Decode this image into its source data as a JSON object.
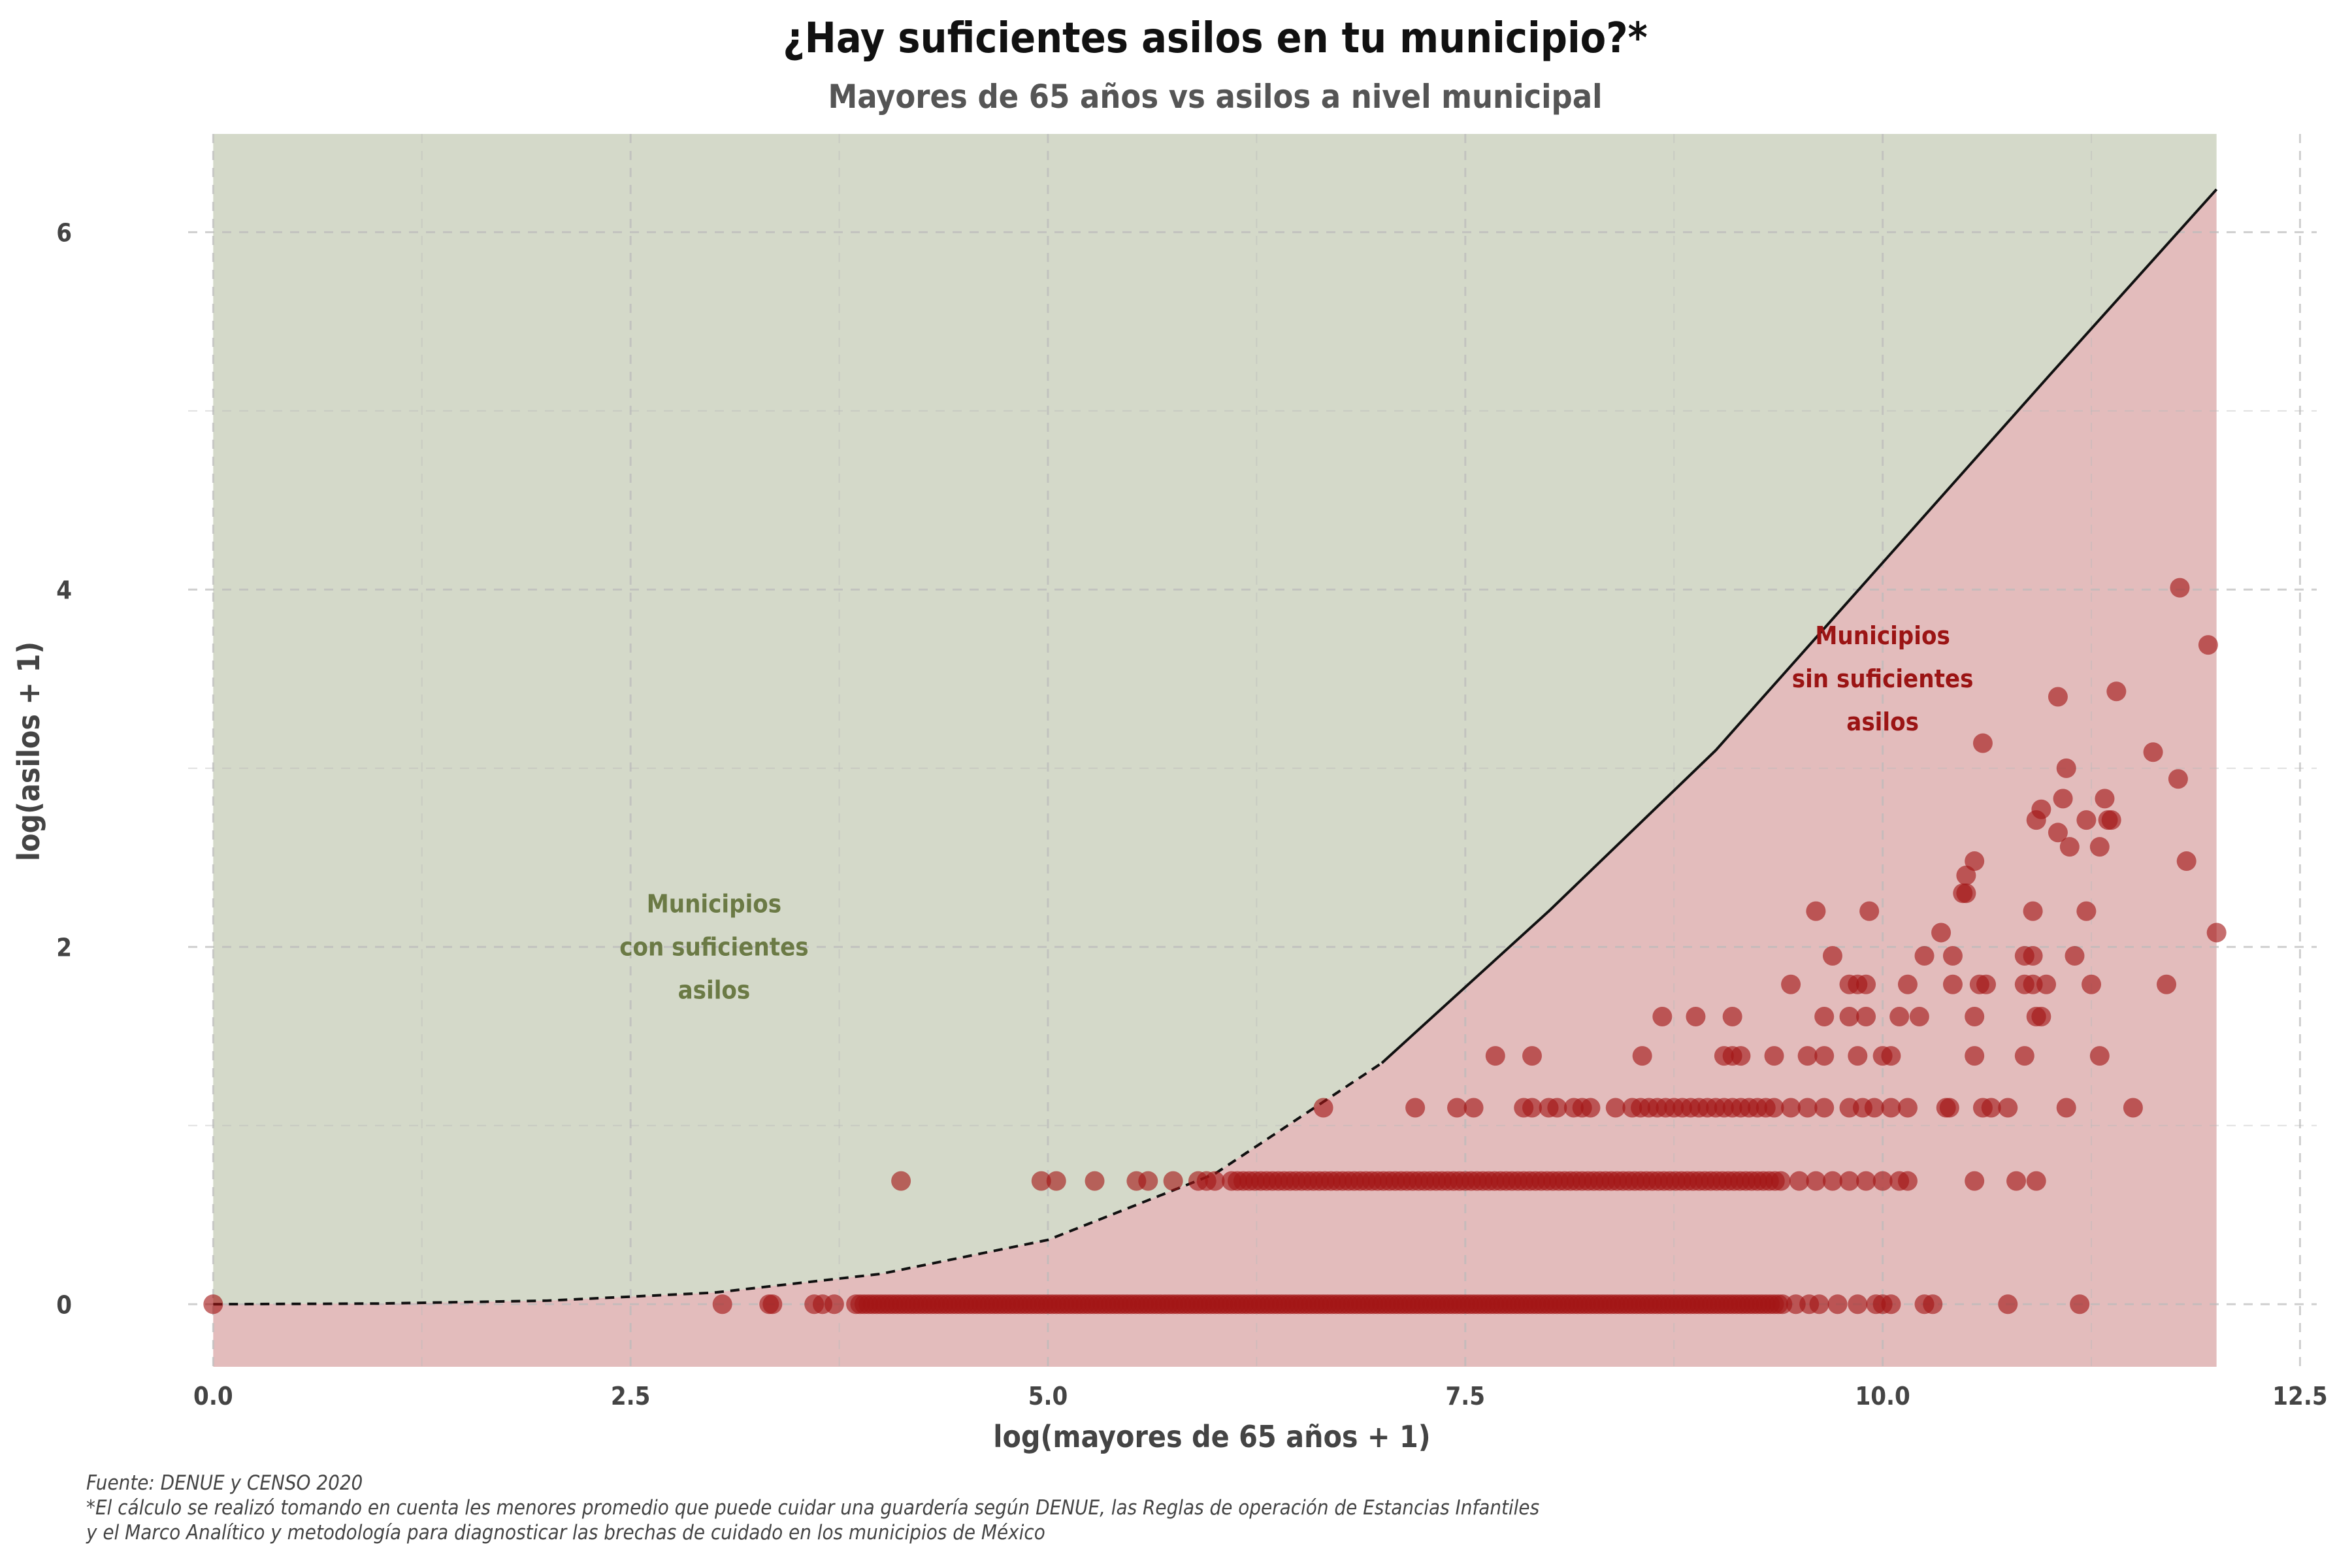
{
  "chart_data": {
    "type": "scatter",
    "title": "¿Hay suficientes asilos en tu municipio?*",
    "subtitle": "Mayores de 65 años  vs asilos a nivel municipal",
    "xlabel": "log(mayores de 65 años + 1)",
    "ylabel": "log(asilos + 1)",
    "xlim": [
      -0.15,
      12.6
    ],
    "ylim": [
      -0.35,
      6.55
    ],
    "x_ticks": [
      "0.0",
      "2.5",
      "5.0",
      "7.5",
      "10.0",
      "12.5"
    ],
    "y_ticks": [
      "0",
      "2",
      "4",
      "6"
    ],
    "grid": true,
    "colors": {
      "green_region": "#d4d9c9",
      "red_region": "#e3bcbc",
      "point": "#a31515",
      "green_text": "#6b7a45",
      "red_text": "#9b1414",
      "line": "#111111"
    },
    "threshold_curve": {
      "description_free": true,
      "points": [
        [
          0,
          0
        ],
        [
          1,
          0.004
        ],
        [
          2,
          0.02
        ],
        [
          3,
          0.065
        ],
        [
          4,
          0.17
        ],
        [
          5,
          0.36
        ],
        [
          6,
          0.73
        ],
        [
          7,
          1.35
        ],
        [
          8,
          2.2
        ],
        [
          9,
          3.1
        ],
        [
          10,
          4.15
        ],
        [
          11,
          5.2
        ],
        [
          12,
          6.24
        ]
      ],
      "dashed_until_x": 7.0
    },
    "annotations": [
      {
        "id": "green",
        "lines": [
          "Municipios",
          "con suficientes",
          "asilos"
        ],
        "x": 3.0,
        "y": 2.0
      },
      {
        "id": "red",
        "lines": [
          "Municipios",
          "sin suficientes",
          "asilos"
        ],
        "x": 10.0,
        "y": 3.5
      }
    ],
    "rows": [
      {
        "y": 0,
        "x_min": 3.85,
        "x_max": 9.4,
        "step": 0.025
      },
      {
        "y": 0.69,
        "x_min": 6.1,
        "x_max": 9.4,
        "step": 0.035
      },
      {
        "y": 1.1,
        "x_min": 8.5,
        "x_max": 9.35,
        "step": 0.05
      }
    ],
    "points": [
      [
        0,
        0
      ],
      [
        3.05,
        0
      ],
      [
        3.33,
        0
      ],
      [
        3.35,
        0
      ],
      [
        3.6,
        0
      ],
      [
        3.65,
        0
      ],
      [
        3.72,
        0
      ],
      [
        9.48,
        0
      ],
      [
        9.56,
        0
      ],
      [
        9.62,
        0
      ],
      [
        9.73,
        0
      ],
      [
        9.85,
        0
      ],
      [
        9.96,
        0
      ],
      [
        10.0,
        0
      ],
      [
        10.05,
        0
      ],
      [
        10.25,
        0
      ],
      [
        10.3,
        0
      ],
      [
        10.75,
        0
      ],
      [
        11.18,
        0
      ],
      [
        4.12,
        0.69
      ],
      [
        4.96,
        0.69
      ],
      [
        5.05,
        0.69
      ],
      [
        5.28,
        0.69
      ],
      [
        5.53,
        0.69
      ],
      [
        5.6,
        0.69
      ],
      [
        5.75,
        0.69
      ],
      [
        5.9,
        0.69
      ],
      [
        5.95,
        0.69
      ],
      [
        6.0,
        0.69
      ],
      [
        9.5,
        0.69
      ],
      [
        9.6,
        0.69
      ],
      [
        9.7,
        0.69
      ],
      [
        9.8,
        0.69
      ],
      [
        9.9,
        0.69
      ],
      [
        10.0,
        0.69
      ],
      [
        10.1,
        0.69
      ],
      [
        10.15,
        0.69
      ],
      [
        10.55,
        0.69
      ],
      [
        10.8,
        0.69
      ],
      [
        10.92,
        0.69
      ],
      [
        6.65,
        1.1
      ],
      [
        7.2,
        1.1
      ],
      [
        7.45,
        1.1
      ],
      [
        7.55,
        1.1
      ],
      [
        7.85,
        1.1
      ],
      [
        7.9,
        1.1
      ],
      [
        8.0,
        1.1
      ],
      [
        8.05,
        1.1
      ],
      [
        8.15,
        1.1
      ],
      [
        8.2,
        1.1
      ],
      [
        8.25,
        1.1
      ],
      [
        8.4,
        1.1
      ],
      [
        9.45,
        1.1
      ],
      [
        9.55,
        1.1
      ],
      [
        9.65,
        1.1
      ],
      [
        9.8,
        1.1
      ],
      [
        9.88,
        1.1
      ],
      [
        9.95,
        1.1
      ],
      [
        10.05,
        1.1
      ],
      [
        10.15,
        1.1
      ],
      [
        10.38,
        1.1
      ],
      [
        10.4,
        1.1
      ],
      [
        10.6,
        1.1
      ],
      [
        10.65,
        1.1
      ],
      [
        10.75,
        1.1
      ],
      [
        11.1,
        1.1
      ],
      [
        11.5,
        1.1
      ],
      [
        7.68,
        1.39
      ],
      [
        7.9,
        1.39
      ],
      [
        8.56,
        1.39
      ],
      [
        9.05,
        1.39
      ],
      [
        9.1,
        1.39
      ],
      [
        9.15,
        1.39
      ],
      [
        9.35,
        1.39
      ],
      [
        9.55,
        1.39
      ],
      [
        9.65,
        1.39
      ],
      [
        9.85,
        1.39
      ],
      [
        10.0,
        1.39
      ],
      [
        10.05,
        1.39
      ],
      [
        10.55,
        1.39
      ],
      [
        10.85,
        1.39
      ],
      [
        11.3,
        1.39
      ],
      [
        8.68,
        1.61
      ],
      [
        8.88,
        1.61
      ],
      [
        9.1,
        1.61
      ],
      [
        9.65,
        1.61
      ],
      [
        9.8,
        1.61
      ],
      [
        9.9,
        1.61
      ],
      [
        10.1,
        1.61
      ],
      [
        10.22,
        1.61
      ],
      [
        10.55,
        1.61
      ],
      [
        10.92,
        1.61
      ],
      [
        10.95,
        1.61
      ],
      [
        9.45,
        1.79
      ],
      [
        9.8,
        1.79
      ],
      [
        9.85,
        1.79
      ],
      [
        9.9,
        1.79
      ],
      [
        10.15,
        1.79
      ],
      [
        10.42,
        1.79
      ],
      [
        10.58,
        1.79
      ],
      [
        10.62,
        1.79
      ],
      [
        10.85,
        1.79
      ],
      [
        10.9,
        1.79
      ],
      [
        10.98,
        1.79
      ],
      [
        11.25,
        1.79
      ],
      [
        11.7,
        1.79
      ],
      [
        9.7,
        1.95
      ],
      [
        10.25,
        1.95
      ],
      [
        10.42,
        1.95
      ],
      [
        10.85,
        1.95
      ],
      [
        10.9,
        1.95
      ],
      [
        11.15,
        1.95
      ],
      [
        10.35,
        2.08
      ],
      [
        12.0,
        2.08
      ],
      [
        9.6,
        2.2
      ],
      [
        9.92,
        2.2
      ],
      [
        10.9,
        2.2
      ],
      [
        11.22,
        2.2
      ],
      [
        10.48,
        2.3
      ],
      [
        10.5,
        2.3
      ],
      [
        10.5,
        2.4
      ],
      [
        10.55,
        2.48
      ],
      [
        11.12,
        2.56
      ],
      [
        11.3,
        2.56
      ],
      [
        11.82,
        2.48
      ],
      [
        10.92,
        2.71
      ],
      [
        11.22,
        2.71
      ],
      [
        11.35,
        2.71
      ],
      [
        11.37,
        2.71
      ],
      [
        10.95,
        2.77
      ],
      [
        11.08,
        2.83
      ],
      [
        11.33,
        2.83
      ],
      [
        11.05,
        2.64
      ],
      [
        11.1,
        3.0
      ],
      [
        11.62,
        3.09
      ],
      [
        11.77,
        2.94
      ],
      [
        10.6,
        3.14
      ],
      [
        11.05,
        3.4
      ],
      [
        11.4,
        3.43
      ],
      [
        11.95,
        3.69
      ],
      [
        11.78,
        4.01
      ]
    ]
  },
  "footer": {
    "source": "Fuente: DENUE y CENSO 2020",
    "note_line1": " *El cálculo se realizó tomando en cuenta les menores promedio que puede cuidar una guardería según DENUE, las Reglas de operación de Estancias Infantiles",
    "note_line2": " y el Marco Analítico y metodología para diagnosticar las brechas de cuidado en los municipios de México"
  }
}
